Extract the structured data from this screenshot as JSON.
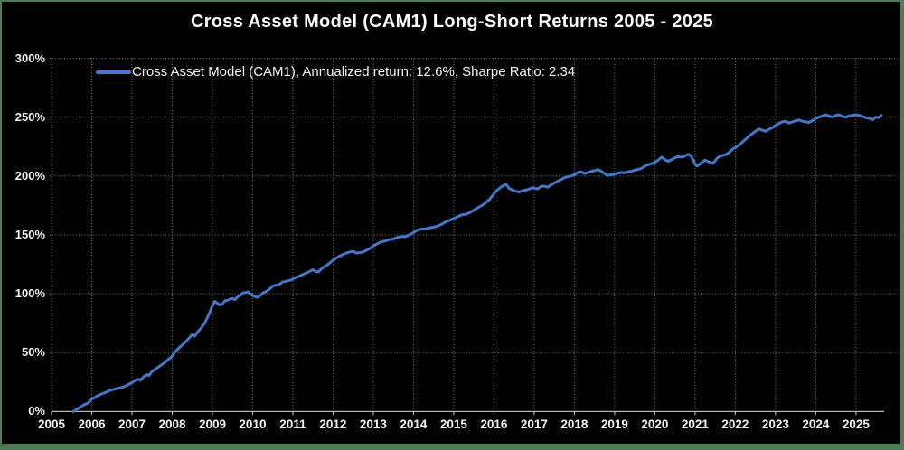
{
  "window": {
    "background": "#000000",
    "border_color": "#4e7a58"
  },
  "header": {
    "title": "Cross Asset Model (CAM1) Long-Short Returns 2005 - 2025"
  },
  "legend": {
    "label": "Cross Asset Model (CAM1), Annualized return: 12.6%, Sharpe Ratio: 2.34",
    "marker_color": "#4577c9"
  },
  "colors": {
    "line": "#4577c9",
    "grid": "#808080",
    "axis": "#b3b3b3",
    "tick_text": "#f5f5f5",
    "title_text": "#ffffff"
  },
  "chart_data": {
    "type": "line",
    "title": "Cross Asset Model (CAM1) Long-Short Returns 2005 - 2025",
    "xlabel": "",
    "ylabel": "",
    "grid": true,
    "legend_position": "upper-left-inside",
    "xlim": [
      2005,
      2025.7
    ],
    "ylim": [
      0,
      300
    ],
    "x_ticks": [
      {
        "value": 2005,
        "label": "2005"
      },
      {
        "value": 2006,
        "label": "2006"
      },
      {
        "value": 2007,
        "label": "2007"
      },
      {
        "value": 2008,
        "label": "2008"
      },
      {
        "value": 2009,
        "label": "2009"
      },
      {
        "value": 2010,
        "label": "2010"
      },
      {
        "value": 2011,
        "label": "2011"
      },
      {
        "value": 2012,
        "label": "2012"
      },
      {
        "value": 2013,
        "label": "2013"
      },
      {
        "value": 2014,
        "label": "2014"
      },
      {
        "value": 2015,
        "label": "2015"
      },
      {
        "value": 2016,
        "label": "2016"
      },
      {
        "value": 2017,
        "label": "2017"
      },
      {
        "value": 2018,
        "label": "2018"
      },
      {
        "value": 2019,
        "label": "2019"
      },
      {
        "value": 2020,
        "label": "2020"
      },
      {
        "value": 2021,
        "label": "2021"
      },
      {
        "value": 2022,
        "label": "2022"
      },
      {
        "value": 2023,
        "label": "2023"
      },
      {
        "value": 2024,
        "label": "2024"
      },
      {
        "value": 2025,
        "label": "2025"
      }
    ],
    "y_ticks": [
      {
        "value": 0,
        "label": "0%"
      },
      {
        "value": 50,
        "label": "50%"
      },
      {
        "value": 100,
        "label": "100%"
      },
      {
        "value": 150,
        "label": "150%"
      },
      {
        "value": 200,
        "label": "200%"
      },
      {
        "value": 250,
        "label": "250%"
      },
      {
        "value": 300,
        "label": "300%"
      }
    ],
    "series": [
      {
        "name": "Cross Asset Model (CAM1)",
        "annualized_return": "12.6%",
        "sharpe_ratio": "2.34",
        "color": "#4577c9",
        "units": "cumulative return, percent",
        "points": [
          [
            2005.54,
            0
          ],
          [
            2005.6,
            1.2
          ],
          [
            2005.67,
            2.8
          ],
          [
            2005.75,
            4.5
          ],
          [
            2005.82,
            6
          ],
          [
            2005.88,
            6.5
          ],
          [
            2005.95,
            8.5
          ],
          [
            2006.0,
            10.5
          ],
          [
            2006.08,
            12
          ],
          [
            2006.15,
            13.5
          ],
          [
            2006.25,
            15
          ],
          [
            2006.33,
            16
          ],
          [
            2006.42,
            17.5
          ],
          [
            2006.5,
            18.5
          ],
          [
            2006.58,
            19
          ],
          [
            2006.67,
            20
          ],
          [
            2006.75,
            20.5
          ],
          [
            2006.83,
            21.5
          ],
          [
            2006.92,
            23
          ],
          [
            2007.0,
            24.5
          ],
          [
            2007.08,
            26.5
          ],
          [
            2007.17,
            27.5
          ],
          [
            2007.21,
            26.5
          ],
          [
            2007.29,
            29.5
          ],
          [
            2007.38,
            31.5
          ],
          [
            2007.42,
            30.5
          ],
          [
            2007.5,
            34
          ],
          [
            2007.58,
            36
          ],
          [
            2007.67,
            38
          ],
          [
            2007.75,
            40
          ],
          [
            2007.83,
            42
          ],
          [
            2007.92,
            44.5
          ],
          [
            2008.0,
            47
          ],
          [
            2008.08,
            51
          ],
          [
            2008.17,
            54
          ],
          [
            2008.25,
            56.5
          ],
          [
            2008.33,
            59
          ],
          [
            2008.42,
            62.5
          ],
          [
            2008.5,
            65.5
          ],
          [
            2008.56,
            64
          ],
          [
            2008.63,
            67.5
          ],
          [
            2008.71,
            70.5
          ],
          [
            2008.79,
            74
          ],
          [
            2008.85,
            78
          ],
          [
            2008.92,
            83
          ],
          [
            2009.0,
            90
          ],
          [
            2009.06,
            93.5
          ],
          [
            2009.12,
            92
          ],
          [
            2009.18,
            90.5
          ],
          [
            2009.25,
            91.5
          ],
          [
            2009.31,
            94
          ],
          [
            2009.38,
            94.5
          ],
          [
            2009.44,
            95.5
          ],
          [
            2009.5,
            96
          ],
          [
            2009.56,
            95
          ],
          [
            2009.63,
            97.5
          ],
          [
            2009.69,
            98.5
          ],
          [
            2009.75,
            100.5
          ],
          [
            2009.81,
            101
          ],
          [
            2009.88,
            101.5
          ],
          [
            2009.94,
            100
          ],
          [
            2010.0,
            98.5
          ],
          [
            2010.06,
            97.5
          ],
          [
            2010.12,
            97
          ],
          [
            2010.19,
            98.5
          ],
          [
            2010.25,
            100.5
          ],
          [
            2010.31,
            101.5
          ],
          [
            2010.38,
            103
          ],
          [
            2010.44,
            104.5
          ],
          [
            2010.5,
            106.5
          ],
          [
            2010.56,
            107
          ],
          [
            2010.63,
            107.5
          ],
          [
            2010.69,
            108.5
          ],
          [
            2010.75,
            110
          ],
          [
            2010.81,
            110.5
          ],
          [
            2010.88,
            111
          ],
          [
            2010.94,
            111.5
          ],
          [
            2011.0,
            112.5
          ],
          [
            2011.08,
            114
          ],
          [
            2011.17,
            115
          ],
          [
            2011.25,
            116.5
          ],
          [
            2011.33,
            117.5
          ],
          [
            2011.42,
            119
          ],
          [
            2011.5,
            120.5
          ],
          [
            2011.56,
            119
          ],
          [
            2011.63,
            118.5
          ],
          [
            2011.71,
            121
          ],
          [
            2011.79,
            123
          ],
          [
            2011.88,
            125
          ],
          [
            2011.96,
            127.5
          ],
          [
            2012.0,
            128.5
          ],
          [
            2012.08,
            130.5
          ],
          [
            2012.17,
            132
          ],
          [
            2012.25,
            133.5
          ],
          [
            2012.33,
            134.5
          ],
          [
            2012.42,
            135.5
          ],
          [
            2012.5,
            136
          ],
          [
            2012.58,
            134.5
          ],
          [
            2012.67,
            135
          ],
          [
            2012.75,
            135.5
          ],
          [
            2012.83,
            137
          ],
          [
            2012.92,
            138.5
          ],
          [
            2013.0,
            140.5
          ],
          [
            2013.1,
            142.5
          ],
          [
            2013.2,
            144
          ],
          [
            2013.3,
            145
          ],
          [
            2013.4,
            146
          ],
          [
            2013.5,
            146.5
          ],
          [
            2013.6,
            148
          ],
          [
            2013.7,
            148.5
          ],
          [
            2013.8,
            148.5
          ],
          [
            2013.9,
            150
          ],
          [
            2014.0,
            152
          ],
          [
            2014.1,
            154
          ],
          [
            2014.2,
            155
          ],
          [
            2014.3,
            155
          ],
          [
            2014.4,
            156
          ],
          [
            2014.5,
            156.5
          ],
          [
            2014.6,
            157.5
          ],
          [
            2014.7,
            159
          ],
          [
            2014.8,
            161
          ],
          [
            2014.9,
            162.5
          ],
          [
            2015.0,
            164
          ],
          [
            2015.1,
            165.5
          ],
          [
            2015.2,
            167
          ],
          [
            2015.3,
            167.5
          ],
          [
            2015.4,
            169
          ],
          [
            2015.5,
            171
          ],
          [
            2015.6,
            173
          ],
          [
            2015.7,
            175
          ],
          [
            2015.8,
            177.5
          ],
          [
            2015.9,
            180.5
          ],
          [
            2016.0,
            185
          ],
          [
            2016.08,
            188
          ],
          [
            2016.17,
            190.5
          ],
          [
            2016.25,
            192
          ],
          [
            2016.3,
            193
          ],
          [
            2016.38,
            189.5
          ],
          [
            2016.46,
            188
          ],
          [
            2016.54,
            187
          ],
          [
            2016.63,
            186.5
          ],
          [
            2016.71,
            187.5
          ],
          [
            2016.79,
            188
          ],
          [
            2016.88,
            189
          ],
          [
            2016.96,
            190
          ],
          [
            2017.08,
            189
          ],
          [
            2017.17,
            191
          ],
          [
            2017.25,
            191.5
          ],
          [
            2017.33,
            190.5
          ],
          [
            2017.42,
            192.5
          ],
          [
            2017.5,
            194
          ],
          [
            2017.58,
            195.5
          ],
          [
            2017.67,
            197
          ],
          [
            2017.75,
            198.5
          ],
          [
            2017.83,
            199.5
          ],
          [
            2017.92,
            200
          ],
          [
            2018.0,
            201
          ],
          [
            2018.08,
            203
          ],
          [
            2018.17,
            203.5
          ],
          [
            2018.25,
            202
          ],
          [
            2018.33,
            203
          ],
          [
            2018.42,
            204
          ],
          [
            2018.5,
            204.5
          ],
          [
            2018.58,
            205.5
          ],
          [
            2018.67,
            204
          ],
          [
            2018.75,
            202
          ],
          [
            2018.83,
            200.5
          ],
          [
            2018.92,
            201
          ],
          [
            2019.0,
            201.5
          ],
          [
            2019.08,
            202.5
          ],
          [
            2019.17,
            203
          ],
          [
            2019.25,
            202.5
          ],
          [
            2019.33,
            203.5
          ],
          [
            2019.42,
            204
          ],
          [
            2019.5,
            205
          ],
          [
            2019.58,
            205.5
          ],
          [
            2019.67,
            206.5
          ],
          [
            2019.75,
            208.5
          ],
          [
            2019.83,
            209.5
          ],
          [
            2019.92,
            210.5
          ],
          [
            2020.0,
            211.5
          ],
          [
            2020.08,
            213.5
          ],
          [
            2020.17,
            216
          ],
          [
            2020.25,
            214
          ],
          [
            2020.33,
            212.5
          ],
          [
            2020.42,
            214
          ],
          [
            2020.5,
            215.5
          ],
          [
            2020.58,
            216.5
          ],
          [
            2020.67,
            216
          ],
          [
            2020.75,
            217
          ],
          [
            2020.83,
            218.5
          ],
          [
            2020.9,
            217
          ],
          [
            2020.96,
            213
          ],
          [
            2021.02,
            209
          ],
          [
            2021.06,
            208.5
          ],
          [
            2021.13,
            210.5
          ],
          [
            2021.19,
            212
          ],
          [
            2021.25,
            213.5
          ],
          [
            2021.31,
            212.5
          ],
          [
            2021.38,
            211.5
          ],
          [
            2021.44,
            210.5
          ],
          [
            2021.5,
            213
          ],
          [
            2021.56,
            215.5
          ],
          [
            2021.63,
            217
          ],
          [
            2021.69,
            217.5
          ],
          [
            2021.75,
            218
          ],
          [
            2021.81,
            219
          ],
          [
            2021.88,
            221
          ],
          [
            2021.94,
            223
          ],
          [
            2022.0,
            224
          ],
          [
            2022.08,
            226
          ],
          [
            2022.17,
            228.5
          ],
          [
            2022.25,
            231
          ],
          [
            2022.33,
            233.5
          ],
          [
            2022.42,
            236
          ],
          [
            2022.5,
            238
          ],
          [
            2022.58,
            240
          ],
          [
            2022.67,
            239
          ],
          [
            2022.75,
            238
          ],
          [
            2022.83,
            239.5
          ],
          [
            2022.92,
            241
          ],
          [
            2023.0,
            243
          ],
          [
            2023.08,
            244.5
          ],
          [
            2023.17,
            246
          ],
          [
            2023.25,
            246.5
          ],
          [
            2023.33,
            245
          ],
          [
            2023.42,
            246
          ],
          [
            2023.5,
            247
          ],
          [
            2023.58,
            247.5
          ],
          [
            2023.67,
            246.5
          ],
          [
            2023.75,
            246
          ],
          [
            2023.83,
            245.5
          ],
          [
            2023.92,
            247
          ],
          [
            2024.0,
            249
          ],
          [
            2024.08,
            250
          ],
          [
            2024.17,
            251
          ],
          [
            2024.25,
            252
          ],
          [
            2024.33,
            251
          ],
          [
            2024.42,
            250
          ],
          [
            2024.5,
            251.5
          ],
          [
            2024.58,
            252
          ],
          [
            2024.67,
            250.5
          ],
          [
            2024.75,
            250
          ],
          [
            2024.83,
            251
          ],
          [
            2024.92,
            251.5
          ],
          [
            2025.0,
            252
          ],
          [
            2025.08,
            251.5
          ],
          [
            2025.17,
            250.5
          ],
          [
            2025.25,
            249.5
          ],
          [
            2025.33,
            249
          ],
          [
            2025.42,
            248
          ],
          [
            2025.5,
            250
          ],
          [
            2025.56,
            249.5
          ],
          [
            2025.63,
            251.5
          ]
        ]
      }
    ]
  }
}
